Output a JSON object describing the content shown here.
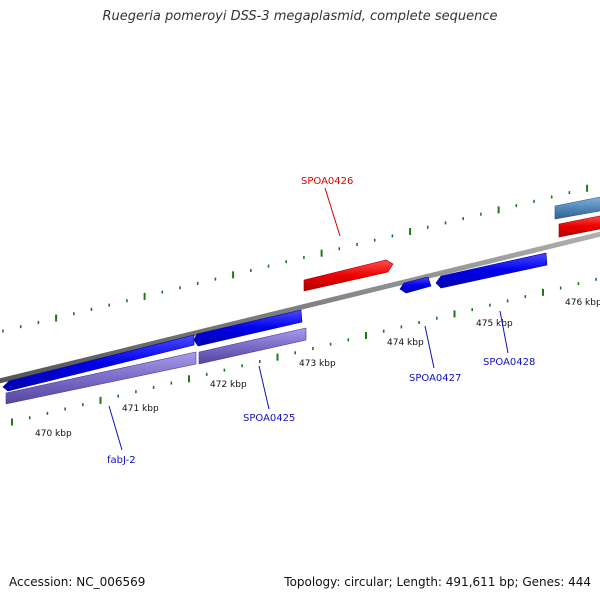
{
  "title": "Ruegeria pomeroyi DSS-3 megaplasmid, complete sequence",
  "footer": {
    "accession": "Accession: NC_006569",
    "summary": "Topology: circular; Length: 491,611 bp; Genes: 444"
  },
  "colors": {
    "backbone": "#808080",
    "tick": "#1a7a1a",
    "forward_gene": "#0000ee",
    "forward_label": "#1010c0",
    "reverse_gene": "#ee0000",
    "reverse_label": "#dd0000",
    "cds_product": "#7a6cc8",
    "other_gene": "#5588bb"
  },
  "scale_labels": [
    "470 kbp",
    "471 kbp",
    "472 kbp",
    "473 kbp",
    "474 kbp",
    "475 kbp",
    "476 kbp"
  ],
  "gene_labels": [
    {
      "text": "fabJ-2",
      "strand": "forward"
    },
    {
      "text": "SPOA0425",
      "strand": "forward"
    },
    {
      "text": "SPOA0426",
      "strand": "reverse"
    },
    {
      "text": "SPOA0427",
      "strand": "forward"
    },
    {
      "text": "SPOA0428",
      "strand": "forward"
    }
  ]
}
